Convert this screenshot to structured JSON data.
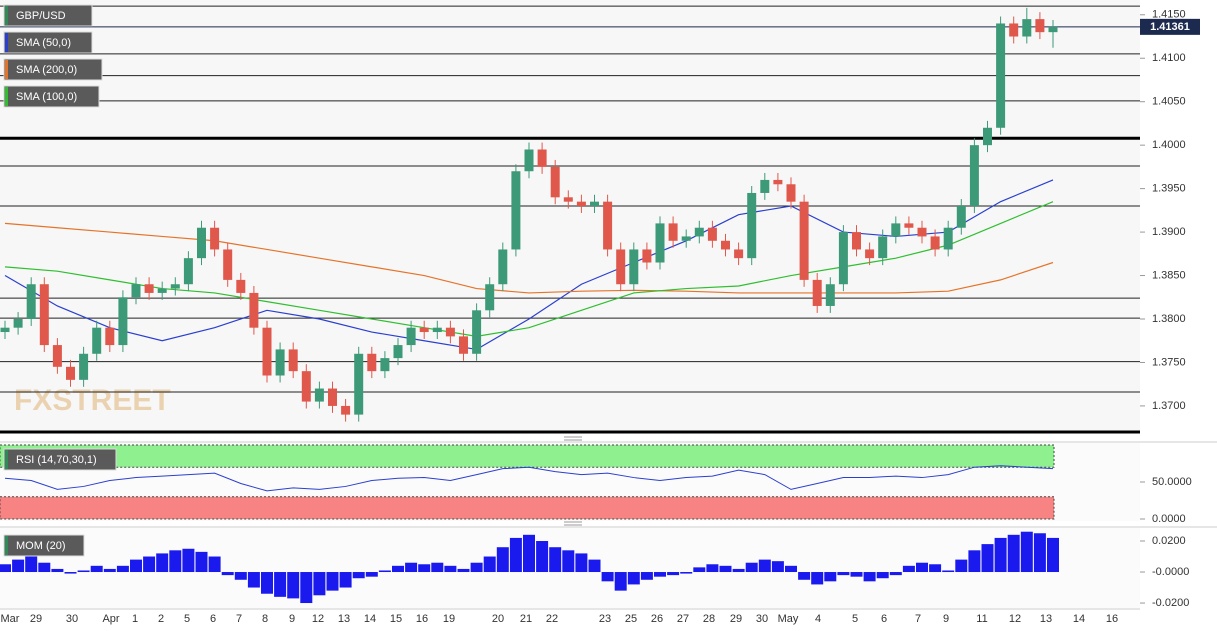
{
  "chart_data": {
    "type": "candlestick",
    "symbol": "GBP/USD",
    "watermark": "FXSTREET",
    "last_price": 1.41361,
    "last_price_color": "#1b2a4e",
    "up_color": "#3d9a78",
    "down_color": "#e0574b",
    "ylim": [
      1.367,
      1.4167
    ],
    "yticks": [
      {
        "value": 1.415,
        "label": "1.4150"
      },
      {
        "value": 1.41,
        "label": "1.4100"
      },
      {
        "value": 1.405,
        "label": "1.4050"
      },
      {
        "value": 1.4,
        "label": "1.4000"
      },
      {
        "value": 1.395,
        "label": "1.3950"
      },
      {
        "value": 1.39,
        "label": "1.3900"
      },
      {
        "value": 1.385,
        "label": "1.3850"
      },
      {
        "value": 1.38,
        "label": "1.3800"
      },
      {
        "value": 1.375,
        "label": "1.3750"
      },
      {
        "value": 1.37,
        "label": "1.3700"
      }
    ],
    "levels": [
      1.416,
      1.4105,
      1.408,
      1.4051,
      1.3976,
      1.393,
      1.3824,
      1.3801,
      1.3751,
      1.3716
    ],
    "strong_levels": [
      1.4008,
      1.367
    ],
    "candles": [
      [
        1.3785,
        1.3798,
        1.3777,
        1.379
      ],
      [
        1.379,
        1.3808,
        1.3782,
        1.38
      ],
      [
        1.38,
        1.3848,
        1.3792,
        1.384
      ],
      [
        1.384,
        1.3848,
        1.3762,
        1.377
      ],
      [
        1.377,
        1.3778,
        1.3737,
        1.3745
      ],
      [
        1.3745,
        1.3753,
        1.3722,
        1.373
      ],
      [
        1.373,
        1.3768,
        1.3722,
        1.376
      ],
      [
        1.376,
        1.3798,
        1.3752,
        1.379
      ],
      [
        1.379,
        1.3798,
        1.3762,
        1.377
      ],
      [
        1.377,
        1.3833,
        1.3762,
        1.3825
      ],
      [
        1.3825,
        1.3848,
        1.3817,
        1.384
      ],
      [
        1.384,
        1.3848,
        1.3822,
        1.383
      ],
      [
        1.383,
        1.3843,
        1.3822,
        1.3835
      ],
      [
        1.3835,
        1.3848,
        1.3827,
        1.384
      ],
      [
        1.384,
        1.3878,
        1.3832,
        1.387
      ],
      [
        1.387,
        1.3913,
        1.3862,
        1.3905
      ],
      [
        1.3905,
        1.3913,
        1.3872,
        1.388
      ],
      [
        1.388,
        1.3888,
        1.3837,
        1.3845
      ],
      [
        1.3845,
        1.3853,
        1.3822,
        1.383
      ],
      [
        1.383,
        1.3838,
        1.3782,
        1.379
      ],
      [
        1.379,
        1.3798,
        1.3727,
        1.3735
      ],
      [
        1.3735,
        1.3773,
        1.3727,
        1.3765
      ],
      [
        1.3765,
        1.3773,
        1.3732,
        1.374
      ],
      [
        1.374,
        1.3748,
        1.3697,
        1.3705
      ],
      [
        1.3705,
        1.3728,
        1.3697,
        1.372
      ],
      [
        1.372,
        1.3728,
        1.3692,
        1.37
      ],
      [
        1.37,
        1.3708,
        1.3682,
        1.369
      ],
      [
        1.369,
        1.3768,
        1.3682,
        1.376
      ],
      [
        1.376,
        1.3768,
        1.3732,
        1.374
      ],
      [
        1.374,
        1.3763,
        1.3732,
        1.3755
      ],
      [
        1.3755,
        1.3778,
        1.3747,
        1.377
      ],
      [
        1.377,
        1.3798,
        1.3762,
        1.379
      ],
      [
        1.379,
        1.3798,
        1.3777,
        1.3785
      ],
      [
        1.3785,
        1.3798,
        1.3777,
        1.379
      ],
      [
        1.379,
        1.3798,
        1.3772,
        1.378
      ],
      [
        1.378,
        1.3788,
        1.3752,
        1.376
      ],
      [
        1.376,
        1.3818,
        1.3752,
        1.381
      ],
      [
        1.381,
        1.3848,
        1.3802,
        1.384
      ],
      [
        1.384,
        1.3888,
        1.3832,
        1.388
      ],
      [
        1.388,
        1.3978,
        1.3872,
        1.397
      ],
      [
        1.397,
        1.4003,
        1.3962,
        1.3995
      ],
      [
        1.3995,
        1.4003,
        1.3967,
        1.3975
      ],
      [
        1.3975,
        1.3983,
        1.3932,
        1.394
      ],
      [
        1.394,
        1.3948,
        1.3927,
        1.3935
      ],
      [
        1.3935,
        1.3943,
        1.3922,
        1.393
      ],
      [
        1.393,
        1.3943,
        1.3922,
        1.3935
      ],
      [
        1.3935,
        1.3943,
        1.3872,
        1.388
      ],
      [
        1.388,
        1.3888,
        1.3832,
        1.384
      ],
      [
        1.384,
        1.3888,
        1.3832,
        1.388
      ],
      [
        1.388,
        1.3888,
        1.3857,
        1.3865
      ],
      [
        1.3865,
        1.3918,
        1.3857,
        1.391
      ],
      [
        1.391,
        1.3918,
        1.3882,
        1.389
      ],
      [
        1.389,
        1.3903,
        1.3882,
        1.3895
      ],
      [
        1.3895,
        1.3913,
        1.3887,
        1.3905
      ],
      [
        1.3905,
        1.3913,
        1.3882,
        1.389
      ],
      [
        1.389,
        1.3898,
        1.3872,
        1.388
      ],
      [
        1.388,
        1.3888,
        1.3862,
        1.387
      ],
      [
        1.387,
        1.3953,
        1.3862,
        1.3945
      ],
      [
        1.3945,
        1.3968,
        1.3937,
        1.396
      ],
      [
        1.396,
        1.3968,
        1.3947,
        1.3955
      ],
      [
        1.3955,
        1.3963,
        1.3927,
        1.3935
      ],
      [
        1.3935,
        1.3943,
        1.3837,
        1.3845
      ],
      [
        1.3845,
        1.3853,
        1.3807,
        1.3815
      ],
      [
        1.3815,
        1.3848,
        1.3807,
        1.384
      ],
      [
        1.384,
        1.3908,
        1.3832,
        1.39
      ],
      [
        1.39,
        1.3908,
        1.3872,
        1.388
      ],
      [
        1.388,
        1.3888,
        1.3862,
        1.387
      ],
      [
        1.387,
        1.3903,
        1.3862,
        1.3895
      ],
      [
        1.3895,
        1.3918,
        1.3887,
        1.391
      ],
      [
        1.391,
        1.3918,
        1.3897,
        1.3905
      ],
      [
        1.3905,
        1.3913,
        1.3887,
        1.3895
      ],
      [
        1.3895,
        1.3903,
        1.3872,
        1.388
      ],
      [
        1.388,
        1.3913,
        1.3872,
        1.3905
      ],
      [
        1.3905,
        1.3938,
        1.3897,
        1.393
      ],
      [
        1.393,
        1.4008,
        1.3922,
        1.4
      ],
      [
        1.4,
        1.4028,
        1.3992,
        1.402
      ],
      [
        1.402,
        1.4148,
        1.4012,
        1.414
      ],
      [
        1.414,
        1.4148,
        1.4117,
        1.4125
      ],
      [
        1.4125,
        1.4158,
        1.4117,
        1.4145
      ],
      [
        1.4145,
        1.4153,
        1.4122,
        1.413
      ],
      [
        1.413,
        1.4144,
        1.4112,
        1.41361
      ]
    ],
    "sma": [
      {
        "name": "SMA (50,0)",
        "color": "#2a3fd0",
        "values": [
          1.385,
          1.3815,
          1.379,
          1.3775,
          1.379,
          1.381,
          1.38,
          1.3785,
          1.3775,
          1.3765,
          1.38,
          1.384,
          1.3865,
          1.389,
          1.392,
          1.393,
          1.39,
          1.3895,
          1.39,
          1.3935,
          1.396
        ]
      },
      {
        "name": "SMA (200,0)",
        "color": "#e5742a",
        "values": [
          1.391,
          1.3905,
          1.39,
          1.3895,
          1.389,
          1.388,
          1.387,
          1.386,
          1.385,
          1.3835,
          1.383,
          1.3832,
          1.3833,
          1.3832,
          1.383,
          1.383,
          1.383,
          1.383,
          1.3832,
          1.3845,
          1.3865
        ]
      },
      {
        "name": "SMA (100,0)",
        "color": "#2fbf2f",
        "values": [
          1.386,
          1.3855,
          1.3845,
          1.3835,
          1.383,
          1.382,
          1.381,
          1.38,
          1.379,
          1.378,
          1.379,
          1.381,
          1.383,
          1.3835,
          1.3838,
          1.385,
          1.386,
          1.387,
          1.3885,
          1.391,
          1.3935
        ]
      }
    ],
    "x_labels": [
      "Mar",
      "29",
      "30",
      "Apr",
      "1",
      "2",
      "5",
      "6",
      "7",
      "8",
      "9",
      "12",
      "13",
      "14",
      "15",
      "16",
      "19",
      "20",
      "21",
      "22",
      "23",
      "25",
      "26",
      "27",
      "28",
      "29",
      "30",
      "May",
      "4",
      "5",
      "6",
      "7",
      "9",
      "11",
      "12",
      "13",
      "14",
      "16"
    ],
    "rsi": {
      "label": "RSI (14,70,30,1)",
      "overbought": 70,
      "oversold": 30,
      "ylim": [
        0,
        100
      ],
      "yticks": [
        {
          "value": 50,
          "label": "50.0000"
        },
        {
          "value": 0,
          "label": "0.0000"
        }
      ],
      "color": "#2a3fd0",
      "values": [
        55,
        52,
        40,
        44,
        52,
        56,
        58,
        60,
        62,
        48,
        38,
        42,
        40,
        44,
        52,
        55,
        56,
        52,
        60,
        68,
        70,
        64,
        60,
        62,
        56,
        52,
        56,
        58,
        66,
        60,
        40,
        48,
        56,
        56,
        58,
        56,
        60,
        70,
        72,
        70,
        68
      ]
    },
    "mom": {
      "label": "MOM (20)",
      "ylim": [
        -0.0232,
        0.0271
      ],
      "color": "#1a1aee",
      "yticks": [
        {
          "value": 0.02,
          "label": "0.0200"
        },
        {
          "value": 0,
          "label": "-0.0000"
        },
        {
          "value": -0.02,
          "label": "-0.0200"
        }
      ],
      "values": [
        0.005,
        0.008,
        0.012,
        0.006,
        0.002,
        -0.001,
        0.001,
        0.004,
        0.002,
        0.004,
        0.008,
        0.01,
        0.012,
        0.014,
        0.015,
        0.013,
        0.01,
        -0.002,
        -0.005,
        -0.01,
        -0.014,
        -0.016,
        -0.017,
        -0.02,
        -0.015,
        -0.012,
        -0.01,
        -0.004,
        -0.003,
        0.001,
        0.004,
        0.006,
        0.005,
        0.006,
        0.004,
        0.002,
        0.006,
        0.01,
        0.016,
        0.022,
        0.024,
        0.02,
        0.016,
        0.014,
        0.012,
        0.008,
        -0.006,
        -0.012,
        -0.008,
        -0.005,
        -0.003,
        -0.002,
        -0.001,
        0.003,
        0.005,
        0.004,
        0.002,
        0.006,
        0.008,
        0.007,
        0.004,
        -0.005,
        -0.008,
        -0.006,
        -0.002,
        -0.003,
        -0.006,
        -0.004,
        -0.002,
        0.004,
        0.006,
        0.005,
        0.001,
        0.008,
        0.014,
        0.018,
        0.022,
        0.024,
        0.026,
        0.025,
        0.022
      ]
    }
  }
}
